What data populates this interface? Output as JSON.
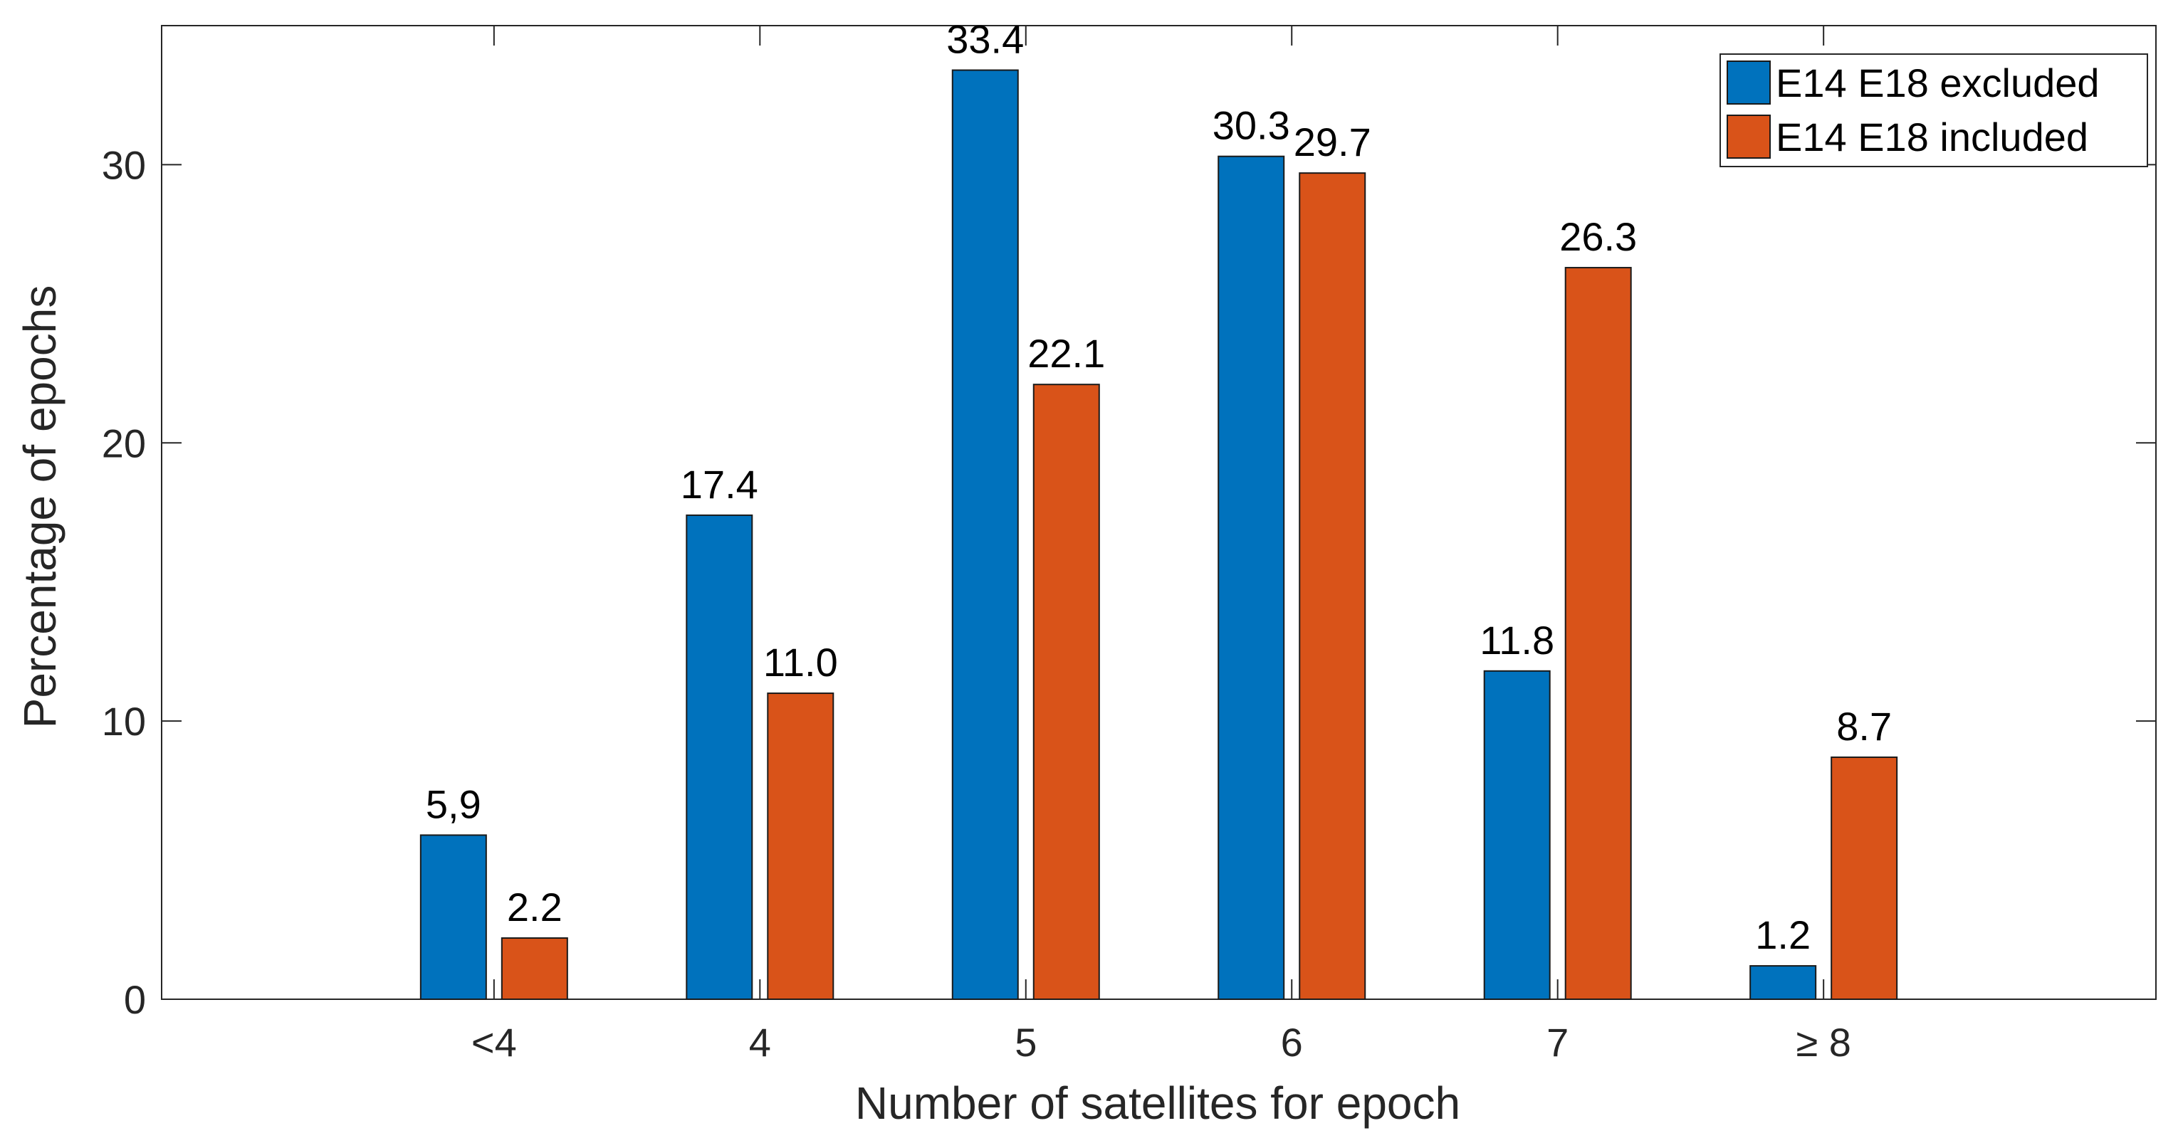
{
  "chart_data": {
    "type": "bar",
    "title": "",
    "xlabel": "Number of satellites for epoch",
    "ylabel": "Percentage of epochs",
    "categories": [
      "<4",
      "4",
      "5",
      "6",
      "7",
      "≥ 8"
    ],
    "ylim": [
      0,
      35
    ],
    "yticks": [
      0,
      10,
      20,
      30
    ],
    "grid": false,
    "legend_position": "top-right",
    "series": [
      {
        "name": "E14 E18 excluded",
        "color": "#0072BD",
        "values": [
          5.9,
          17.4,
          33.4,
          30.3,
          11.8,
          1.2
        ],
        "labels": [
          "5,9",
          "17.4",
          "33.4",
          "30.3",
          "11.8",
          "1.2"
        ]
      },
      {
        "name": "E14 E18 included",
        "color": "#D95319",
        "values": [
          2.2,
          11.0,
          22.1,
          29.7,
          26.3,
          8.7
        ],
        "labels": [
          "2.2",
          "11.0",
          "22.1",
          "29.7",
          "26.3",
          "8.7"
        ]
      }
    ]
  }
}
